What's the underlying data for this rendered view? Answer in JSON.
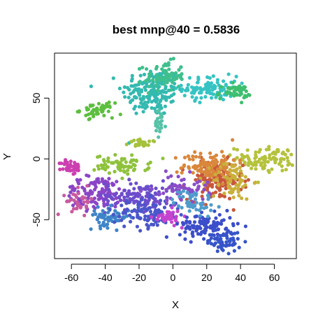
{
  "chart_data": {
    "type": "scatter",
    "title": "best mnp@40 = 0.5836",
    "xlabel": "X",
    "ylabel": "Y",
    "xlim": [
      -70,
      73
    ],
    "ylim": [
      -82,
      87
    ],
    "x_ticks": [
      -60,
      -40,
      -20,
      0,
      20,
      40,
      60
    ],
    "y_ticks": [
      -50,
      0,
      50
    ],
    "x_tick_labels": [
      "-60",
      "-40",
      "-20",
      "0",
      "20",
      "40",
      "60"
    ],
    "y_tick_labels": [
      "-50",
      "0",
      "50"
    ],
    "grid": false,
    "legend": "none",
    "clusters": [
      {
        "color": "#33b9b0",
        "cx": -12,
        "cy": 55,
        "sx": 9,
        "sy": 10,
        "n": 180
      },
      {
        "color": "#3fbf8c",
        "cx": -5,
        "cy": 68,
        "sx": 6,
        "sy": 6,
        "n": 70
      },
      {
        "color": "#36c3c3",
        "cx": 22,
        "cy": 58,
        "sx": 8,
        "sy": 5,
        "n": 100
      },
      {
        "color": "#3fbe6e",
        "cx": 36,
        "cy": 55,
        "sx": 5,
        "sy": 3,
        "n": 45
      },
      {
        "color": "#5cbf3f",
        "cx": -45,
        "cy": 40,
        "sx": 5,
        "sy": 3,
        "n": 50
      },
      {
        "color": "#a6c13d",
        "cx": -18,
        "cy": 13,
        "sx": 4,
        "sy": 1.5,
        "n": 25
      },
      {
        "color": "#56c2a8",
        "cx": -8,
        "cy": 28,
        "sx": 2,
        "sy": 6,
        "n": 25
      },
      {
        "color": "#8fc23c",
        "cx": -30,
        "cy": -5,
        "sx": 8,
        "sy": 4,
        "n": 70
      },
      {
        "color": "#b5c23c",
        "cx": 55,
        "cy": 0,
        "sx": 9,
        "sy": 5,
        "n": 100
      },
      {
        "color": "#c8573a",
        "cx": 25,
        "cy": -18,
        "sx": 8,
        "sy": 8,
        "n": 140
      },
      {
        "color": "#d9873b",
        "cx": 22,
        "cy": -5,
        "sx": 8,
        "sy": 6,
        "n": 110
      },
      {
        "color": "#c9b03b",
        "cx": 35,
        "cy": -18,
        "sx": 6,
        "sy": 8,
        "n": 70
      },
      {
        "color": "#cc3fb0",
        "cx": -60,
        "cy": -7,
        "sx": 3,
        "sy": 3,
        "n": 40
      },
      {
        "color": "#8a45c7",
        "cx": -45,
        "cy": -28,
        "sx": 10,
        "sy": 7,
        "n": 110
      },
      {
        "color": "#6c4dcc",
        "cx": -20,
        "cy": -30,
        "sx": 10,
        "sy": 6,
        "n": 120
      },
      {
        "color": "#c85a9e",
        "cx": -55,
        "cy": -35,
        "sx": 4,
        "sy": 5,
        "n": 35
      },
      {
        "color": "#3e84c8",
        "cx": -38,
        "cy": -48,
        "sx": 6,
        "sy": 4,
        "n": 60
      },
      {
        "color": "#4a56c9",
        "cx": -15,
        "cy": -45,
        "sx": 10,
        "sy": 6,
        "n": 110
      },
      {
        "color": "#c544cf",
        "cx": -3,
        "cy": -48,
        "sx": 4,
        "sy": 3,
        "n": 35
      },
      {
        "color": "#3c4ec9",
        "cx": 20,
        "cy": -55,
        "sx": 8,
        "sy": 5,
        "n": 110
      },
      {
        "color": "#3654c9",
        "cx": 30,
        "cy": -68,
        "sx": 5,
        "sy": 4,
        "n": 60
      },
      {
        "color": "#8a4dc8",
        "cx": 5,
        "cy": -25,
        "sx": 8,
        "sy": 6,
        "n": 60
      },
      {
        "color": "#4e9bcc",
        "cx": 12,
        "cy": -35,
        "sx": 6,
        "sy": 5,
        "n": 50
      }
    ]
  }
}
